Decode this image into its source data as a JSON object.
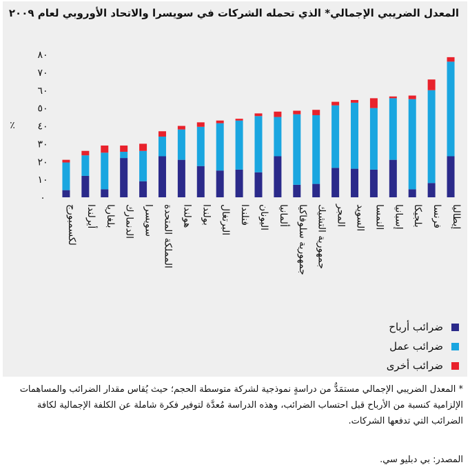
{
  "chart_data": {
    "type": "bar",
    "stacked": true,
    "title": "المعدل الضريبي الإجمالي* الذي تحمله الشركات في سويسرا والاتحاد الأوروبي لعام ٢٠٠٩",
    "ylabel": "٪",
    "ylim": [
      0,
      80
    ],
    "yticks": [
      0,
      10,
      20,
      30,
      40,
      50,
      60,
      70,
      80
    ],
    "ytick_labels": [
      "٠",
      "١٠",
      "٢٠",
      "٣٠",
      "٤٠",
      "٥٠",
      "٦٠",
      "٧٠",
      "٨٠"
    ],
    "categories": [
      "لكسمبورج",
      "أيرلندا",
      "بلغاريا",
      "الدنمارك",
      "سويسرا",
      "المملكة المتحدة",
      "هولندا",
      "بولندا",
      "البرتغال",
      "فنلندا",
      "اليونان",
      "ألمانيا",
      "جمهورية سلوفاكيا",
      "جمهورية التشيك",
      "المجر",
      "السويد",
      "النمسا",
      "إسبانيا",
      "بلجيكا",
      "فرنسا",
      "إيطاليا"
    ],
    "series": [
      {
        "name": "ضرائب أرباح",
        "color": "#2b2a8a",
        "values": [
          4,
          12,
          4.5,
          22,
          9,
          23,
          21,
          17.5,
          15,
          15.5,
          14,
          23,
          7,
          7.5,
          16.5,
          16,
          15.5,
          21,
          4.5,
          8,
          23
        ]
      },
      {
        "name": "ضرائب عمل",
        "color": "#1aa6e0",
        "values": [
          15.5,
          11.5,
          20.5,
          3.5,
          17,
          11,
          17,
          22,
          26.5,
          27.5,
          31.5,
          22,
          39.5,
          38.5,
          35,
          37,
          34.5,
          34.5,
          50.5,
          52,
          53
        ]
      },
      {
        "name": "ضرائب أخرى",
        "color": "#e8222c",
        "values": [
          1.5,
          2.5,
          4,
          3.5,
          4,
          3,
          2,
          2.5,
          1.5,
          1,
          1.5,
          3,
          2,
          3,
          2,
          1.5,
          5.5,
          1,
          2,
          6,
          2.5
        ]
      }
    ],
    "grid": false,
    "legend_position": "below-right"
  },
  "footnote": "* المعدل الضريبي الإجمالي مستمَدٌّ من دراسةٍ نموذجية لشركة متوسطة الحجم؛ حيث يُقاس مقدار الضرائب والمساهمات الإلزامية كنسبة من الأرباح قبل احتساب الضرائب، وهذه الدراسة مُعدَّة لتوفير فكرة شاملة عن الكلفة الإجمالية لكافة الضرائب التي تدفعها الشركات.",
  "source": "المصدر: بي دبليو سي."
}
